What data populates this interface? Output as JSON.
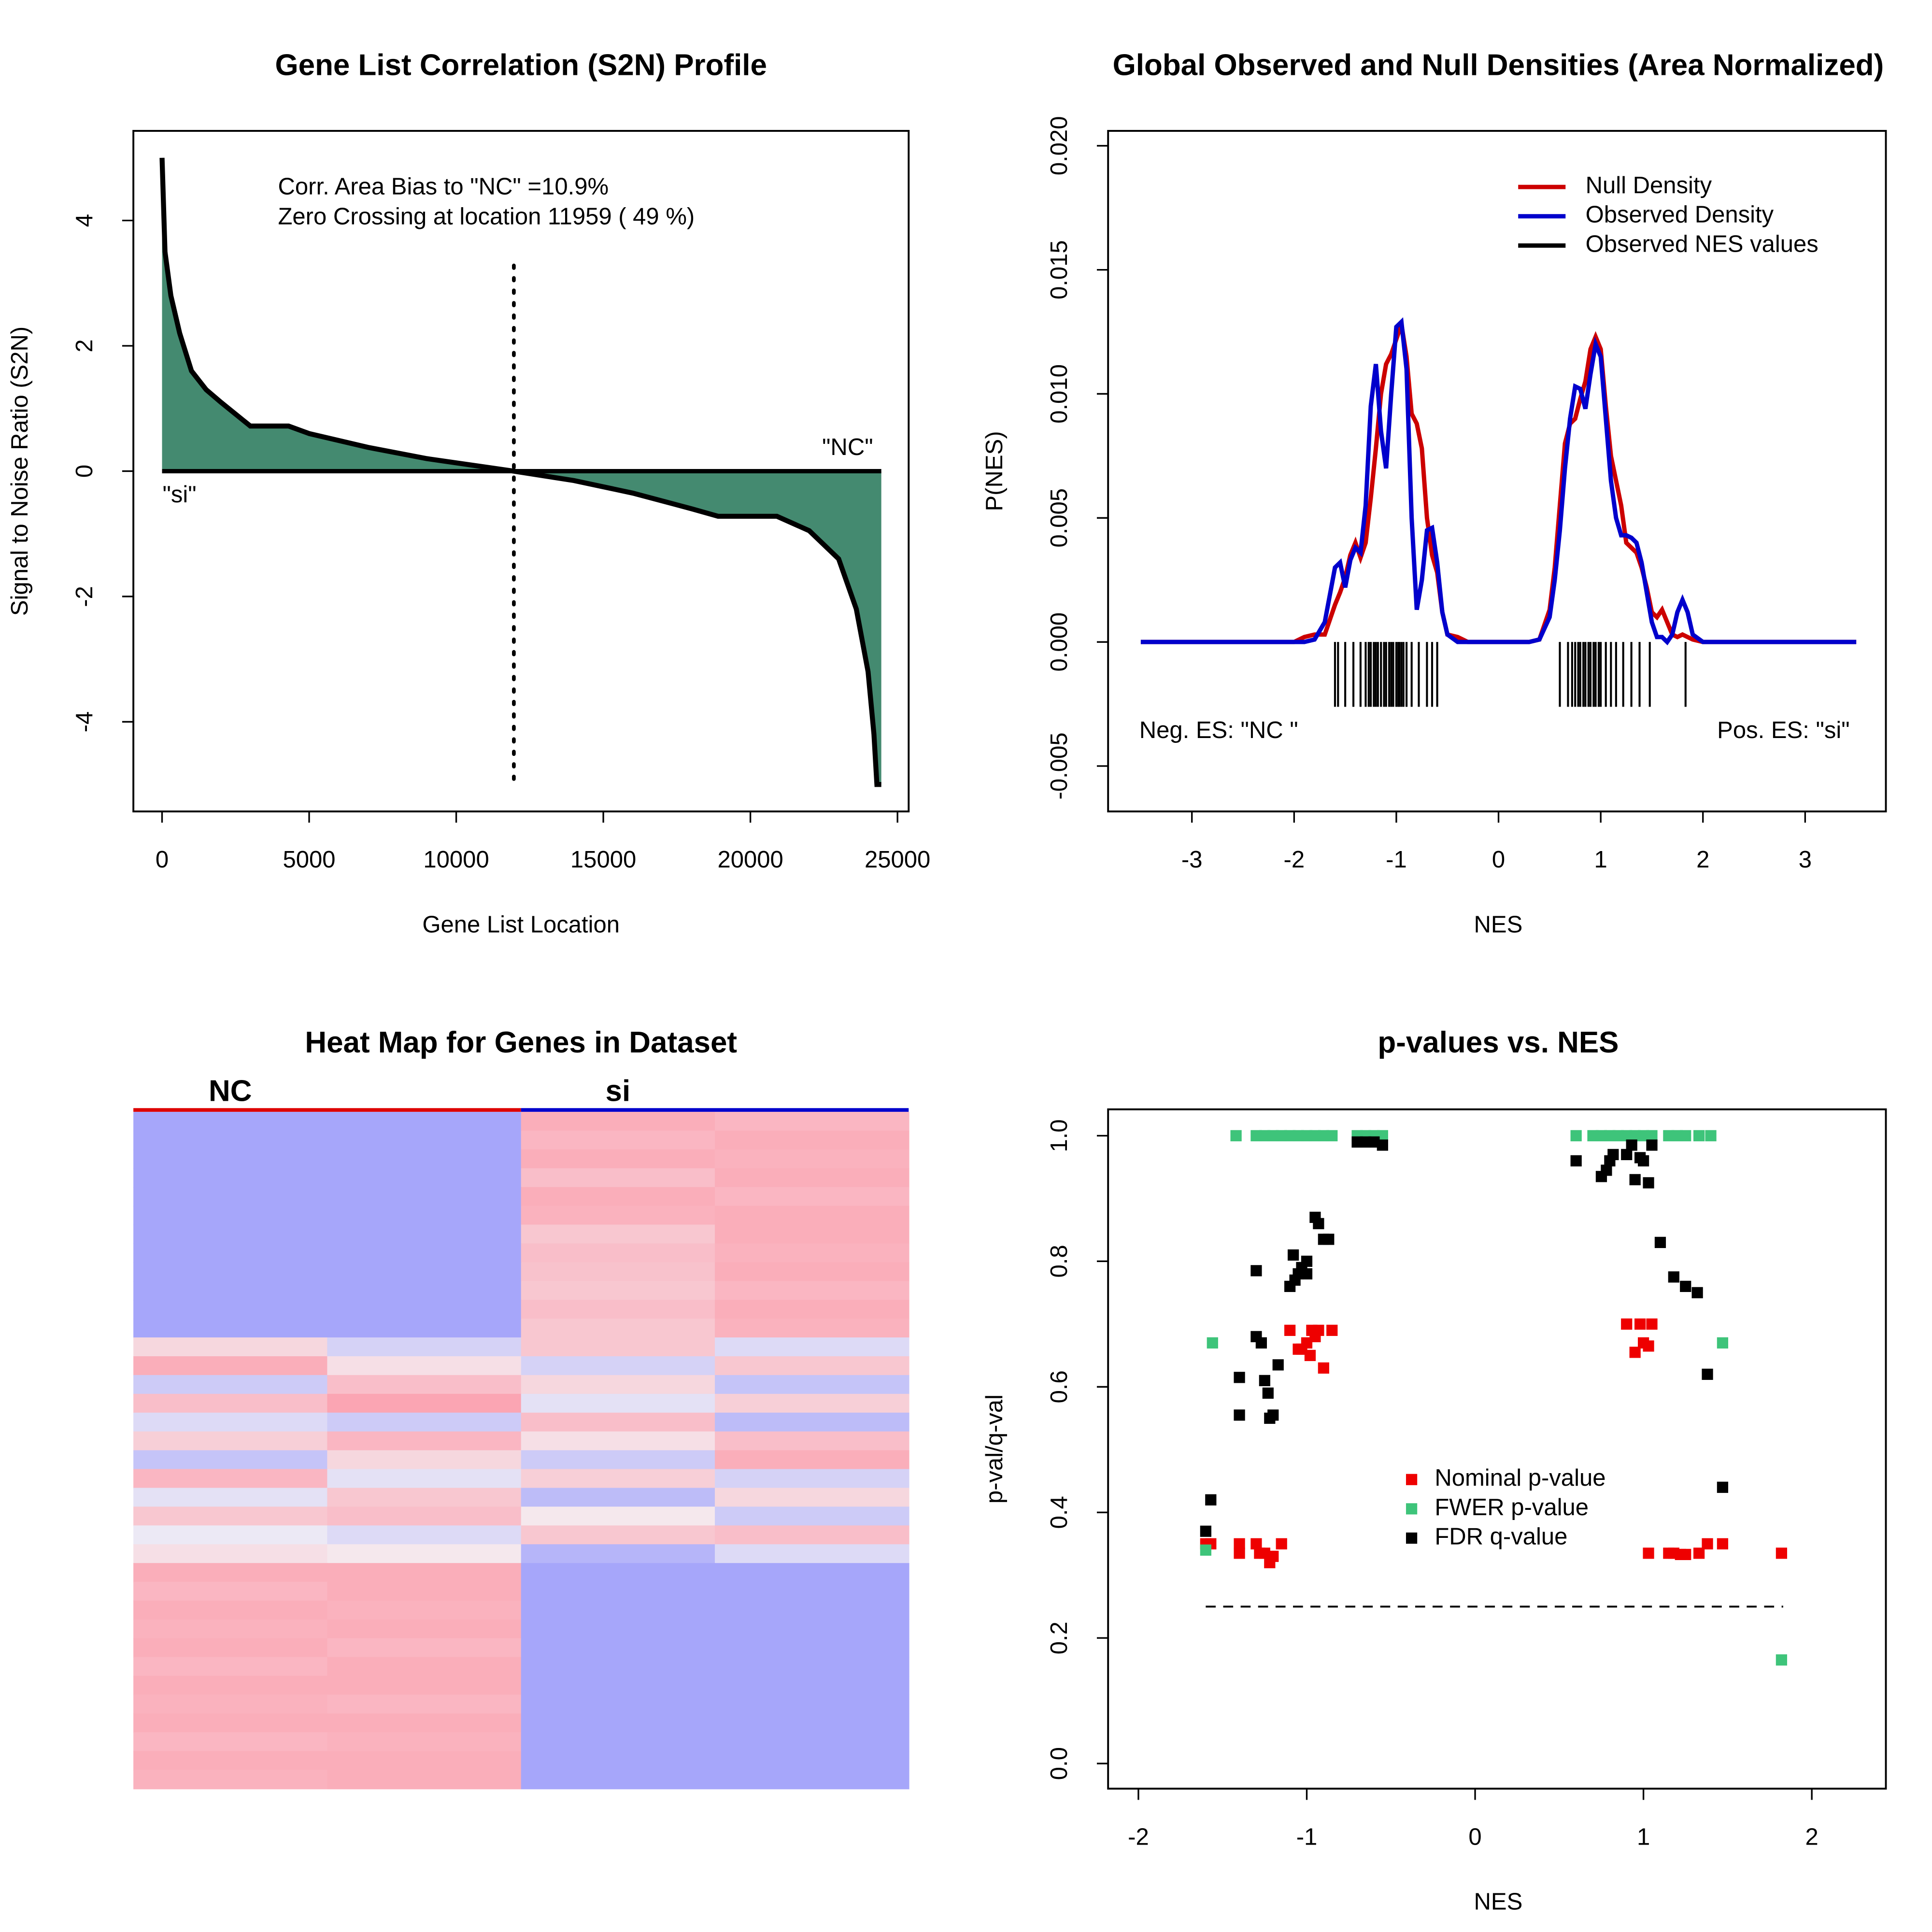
{
  "chart_data": [
    {
      "type": "area",
      "title": "Gene List Correlation (S2N) Profile",
      "xlabel": "Gene List Location",
      "ylabel": "Signal to Noise Ratio (S2N)",
      "x": [
        0,
        100,
        300,
        600,
        1000,
        1500,
        2000,
        3000,
        4300,
        5000,
        7000,
        9000,
        11959,
        14000,
        16000,
        18000,
        18900,
        20900,
        22000,
        23000,
        23600,
        24000,
        24200,
        24300,
        24450
      ],
      "values": [
        5.0,
        3.5,
        2.8,
        2.2,
        1.6,
        1.3,
        1.1,
        0.72,
        0.72,
        0.6,
        0.38,
        0.2,
        0,
        -0.15,
        -0.35,
        -0.6,
        -0.72,
        -0.72,
        -0.95,
        -1.4,
        -2.2,
        -3.2,
        -4.2,
        -5.0,
        -5.0
      ],
      "color": "#448a70",
      "zero_crossing": 11959,
      "annotations": [
        "Corr. Area Bias to \"NC\" =10.9%",
        "Zero Crossing at location  11959  ( 49  %)",
        "\"NC\"",
        "\"si\""
      ],
      "xlim": [
        -975,
        25380
      ],
      "ylim": [
        -5.43,
        5.43
      ],
      "xticks": [
        0,
        5000,
        10000,
        15000,
        20000,
        25000
      ],
      "yticks": [
        -4,
        -2,
        0,
        2,
        4
      ]
    },
    {
      "type": "line",
      "title": "Global Observed and Null Densities (Area Normalized)",
      "xlabel": "NES",
      "ylabel": "P(NES)",
      "x": [
        -3.5,
        -2.0,
        -1.9,
        -1.8,
        -1.7,
        -1.6,
        -1.55,
        -1.5,
        -1.45,
        -1.4,
        -1.35,
        -1.3,
        -1.25,
        -1.2,
        -1.15,
        -1.1,
        -1.05,
        -1.0,
        -0.95,
        -0.9,
        -0.85,
        -0.8,
        -0.75,
        -0.7,
        -0.65,
        -0.6,
        -0.55,
        -0.5,
        -0.4,
        -0.3,
        0.3,
        0.4,
        0.5,
        0.55,
        0.6,
        0.65,
        0.7,
        0.75,
        0.8,
        0.85,
        0.9,
        0.95,
        1.0,
        1.05,
        1.1,
        1.15,
        1.2,
        1.25,
        1.3,
        1.35,
        1.4,
        1.45,
        1.5,
        1.55,
        1.6,
        1.65,
        1.7,
        1.75,
        1.8,
        1.85,
        1.9,
        2.0,
        3.5
      ],
      "series": [
        {
          "name": "Null Density",
          "color": "#cc0000",
          "values": [
            0,
            0,
            0.0002,
            0.0003,
            0.0003,
            0.0015,
            0.002,
            0.0026,
            0.0035,
            0.004,
            0.0034,
            0.004,
            0.0058,
            0.0078,
            0.01,
            0.0112,
            0.0116,
            0.0122,
            0.0128,
            0.0115,
            0.0092,
            0.0088,
            0.0078,
            0.005,
            0.0035,
            0.0028,
            0.0012,
            0.0003,
            0.0002,
            0,
            0,
            0.0001,
            0.0013,
            0.003,
            0.0055,
            0.008,
            0.0088,
            0.009,
            0.0098,
            0.0105,
            0.0118,
            0.0123,
            0.0118,
            0.0095,
            0.0075,
            0.0065,
            0.0055,
            0.004,
            0.0038,
            0.0036,
            0.003,
            0.0022,
            0.0012,
            0.001,
            0.0013,
            0.0008,
            0.0003,
            0.0002,
            0.0003,
            0.0002,
            0.0001,
            0,
            0
          ]
        },
        {
          "name": "Observed Density",
          "color": "#0000cc",
          "values": [
            0,
            0,
            0,
            0.0001,
            0.0008,
            0.003,
            0.0032,
            0.0022,
            0.0033,
            0.0038,
            0.0036,
            0.0055,
            0.0095,
            0.0112,
            0.0085,
            0.007,
            0.01,
            0.0127,
            0.0129,
            0.011,
            0.005,
            0.0013,
            0.0025,
            0.0045,
            0.0046,
            0.0032,
            0.0012,
            0.0003,
            0,
            0,
            0,
            0.0001,
            0.001,
            0.0025,
            0.0045,
            0.007,
            0.009,
            0.0103,
            0.0102,
            0.0094,
            0.0108,
            0.012,
            0.0115,
            0.009,
            0.0065,
            0.005,
            0.0043,
            0.0043,
            0.0042,
            0.004,
            0.0032,
            0.002,
            0.0008,
            0.0002,
            0.0002,
            0,
            0.0003,
            0.0012,
            0.0017,
            0.0012,
            0.0003,
            0,
            0
          ]
        }
      ],
      "rug_name": "Observed NES values",
      "rug_color": "#000000",
      "rug": [
        -1.6,
        -1.57,
        -1.5,
        -1.42,
        -1.35,
        -1.3,
        -1.27,
        -1.25,
        -1.22,
        -1.2,
        -1.18,
        -1.15,
        -1.12,
        -1.1,
        -1.07,
        -1.05,
        -1.03,
        -1.0,
        -0.98,
        -0.97,
        -0.95,
        -0.93,
        -0.9,
        -0.85,
        -0.78,
        -0.7,
        -0.65,
        -0.6,
        0.6,
        0.68,
        0.72,
        0.75,
        0.78,
        0.8,
        0.83,
        0.85,
        0.88,
        0.9,
        0.93,
        0.95,
        0.98,
        1.0,
        1.05,
        1.1,
        1.15,
        1.22,
        1.3,
        1.38,
        1.48,
        1.83
      ],
      "annotations": [
        "Neg. ES: \"NC \"",
        "Pos. ES: \"si\""
      ],
      "xlim": [
        -3.82,
        3.79
      ],
      "ylim": [
        -0.00683,
        0.0206
      ],
      "xticks": [
        -3,
        -2,
        -1,
        0,
        1,
        2,
        3
      ],
      "yticks": [
        {
          "value": -0.005,
          "label": "-0.005"
        },
        {
          "value": 0,
          "label": "0.000"
        },
        {
          "value": 0.005,
          "label": "0.005"
        },
        {
          "value": 0.01,
          "label": "0.010"
        },
        {
          "value": 0.015,
          "label": "0.015"
        },
        {
          "value": 0.02,
          "label": "0.020"
        }
      ]
    },
    {
      "type": "heatmap",
      "title": "Heat Map for Genes in Dataset",
      "groups": [
        "NC",
        "si"
      ],
      "group_colors": [
        "#dd0000",
        "#0000cc"
      ],
      "colors": [
        "#a6a6fa",
        "#f4f0f4",
        "#fc9dac"
      ],
      "rows": [
        [
          -1,
          -1,
          0.8,
          0.7
        ],
        [
          -1,
          -1,
          0.7,
          0.8
        ],
        [
          -1,
          -1,
          0.8,
          0.75
        ],
        [
          -1,
          -1,
          0.6,
          0.8
        ],
        [
          -1,
          -1,
          0.8,
          0.7
        ],
        [
          -1,
          -1,
          0.75,
          0.8
        ],
        [
          -1,
          -1,
          0.5,
          0.8
        ],
        [
          -1,
          -1,
          0.6,
          0.75
        ],
        [
          -1,
          -1,
          0.55,
          0.8
        ],
        [
          -1,
          -1,
          0.5,
          0.7
        ],
        [
          -1,
          -1,
          0.6,
          0.8
        ],
        [
          -1,
          -1,
          0.5,
          0.75
        ],
        [
          0.3,
          -0.4,
          0.5,
          -0.3
        ],
        [
          0.8,
          0.2,
          -0.4,
          0.5
        ],
        [
          -0.5,
          0.6,
          0.3,
          -0.6
        ],
        [
          0.6,
          0.9,
          -0.2,
          0.4
        ],
        [
          -0.3,
          -0.5,
          0.6,
          -0.7
        ],
        [
          0.4,
          0.7,
          0.2,
          0.6
        ],
        [
          -0.6,
          0.3,
          -0.5,
          0.8
        ],
        [
          0.7,
          -0.2,
          0.4,
          -0.4
        ],
        [
          -0.2,
          0.5,
          -0.7,
          0.3
        ],
        [
          0.5,
          0.6,
          0.1,
          -0.5
        ],
        [
          -0.1,
          -0.3,
          0.5,
          0.6
        ],
        [
          0.2,
          0.1,
          -0.8,
          -0.3
        ],
        [
          0.8,
          0.8,
          -1,
          -1
        ],
        [
          0.7,
          0.8,
          -1,
          -1
        ],
        [
          0.8,
          0.75,
          -1,
          -1
        ],
        [
          0.75,
          0.8,
          -1,
          -1
        ],
        [
          0.8,
          0.7,
          -1,
          -1
        ],
        [
          0.7,
          0.8,
          -1,
          -1
        ],
        [
          0.8,
          0.8,
          -1,
          -1
        ],
        [
          0.75,
          0.7,
          -1,
          -1
        ],
        [
          0.8,
          0.8,
          -1,
          -1
        ],
        [
          0.7,
          0.75,
          -1,
          -1
        ],
        [
          0.8,
          0.8,
          -1,
          -1
        ],
        [
          0.75,
          0.8,
          -1,
          -1
        ]
      ]
    },
    {
      "type": "scatter",
      "title": "p-values vs. NES",
      "xlabel": "NES",
      "ylabel": "p-val/q-val",
      "threshold": 0.25,
      "series": [
        {
          "name": "Nominal p-value",
          "color": "#ee0000",
          "x": [
            -1.6,
            -1.57,
            -1.4,
            -1.4,
            -1.3,
            -1.28,
            -1.25,
            -1.22,
            -1.2,
            -1.15,
            -1.1,
            -1.05,
            -1.03,
            -1.0,
            -0.98,
            -0.97,
            -0.95,
            -0.93,
            -0.9,
            -0.85,
            0.9,
            0.95,
            0.98,
            1.0,
            1.03,
            1.05,
            1.03,
            1.15,
            1.18,
            1.22,
            1.25,
            1.33,
            1.38,
            1.47,
            1.82
          ],
          "values": [
            0.35,
            0.35,
            0.335,
            0.35,
            0.35,
            0.335,
            0.335,
            0.32,
            0.33,
            0.35,
            0.69,
            0.66,
            0.66,
            0.67,
            0.65,
            0.69,
            0.68,
            0.69,
            0.63,
            0.69,
            0.7,
            0.655,
            0.7,
            0.67,
            0.665,
            0.7,
            0.335,
            0.335,
            0.335,
            0.333,
            0.333,
            0.335,
            0.35,
            0.35,
            0.335
          ]
        },
        {
          "name": "FWER p-value",
          "color": "#3ec47a",
          "x": [
            -1.6,
            -1.56,
            -1.42,
            -1.3,
            -1.25,
            -1.2,
            -1.15,
            -1.1,
            -1.05,
            -1.0,
            -0.95,
            -0.9,
            -0.85,
            -0.7,
            -0.65,
            -0.6,
            -0.55,
            0.6,
            0.7,
            0.75,
            0.8,
            0.85,
            0.9,
            0.95,
            1.0,
            1.05,
            1.15,
            1.2,
            1.25,
            1.33,
            1.4,
            1.47,
            1.82
          ],
          "values": [
            0.34,
            0.67,
            1.0,
            1.0,
            1.0,
            1.0,
            1.0,
            1.0,
            1.0,
            1.0,
            1.0,
            1.0,
            1.0,
            1.0,
            1.0,
            1.0,
            1.0,
            1.0,
            1.0,
            1.0,
            1.0,
            1.0,
            1.0,
            1.0,
            1.0,
            1.0,
            1.0,
            1.0,
            1.0,
            1.0,
            1.0,
            0.67,
            0.165
          ]
        },
        {
          "name": "FDR q-value",
          "color": "#000000",
          "x": [
            -1.6,
            -1.57,
            -1.4,
            -1.4,
            -1.3,
            -1.3,
            -1.27,
            -1.25,
            -1.23,
            -1.22,
            -1.2,
            -1.17,
            -1.1,
            -1.08,
            -1.07,
            -1.05,
            -1.03,
            -1.0,
            -1.0,
            -0.95,
            -0.93,
            -0.9,
            -0.87,
            -0.7,
            -0.65,
            -0.6,
            -0.55,
            0.6,
            0.75,
            0.78,
            0.8,
            0.82,
            0.9,
            0.93,
            0.95,
            0.98,
            1.0,
            1.03,
            1.05,
            1.1,
            1.18,
            1.25,
            1.32,
            1.38,
            1.47
          ],
          "values": [
            0.37,
            0.42,
            0.615,
            0.555,
            0.785,
            0.68,
            0.67,
            0.61,
            0.59,
            0.55,
            0.555,
            0.635,
            0.76,
            0.81,
            0.77,
            0.78,
            0.79,
            0.78,
            0.8,
            0.87,
            0.86,
            0.835,
            0.835,
            0.99,
            0.99,
            0.99,
            0.985,
            0.96,
            0.935,
            0.945,
            0.96,
            0.97,
            0.97,
            0.985,
            0.93,
            0.965,
            0.96,
            0.925,
            0.985,
            0.83,
            0.775,
            0.76,
            0.75,
            0.62,
            0.44
          ]
        }
      ],
      "xlim": [
        -2.18,
        2.44
      ],
      "ylim": [
        -0.04,
        1.042
      ],
      "xticks": [
        -2,
        -1,
        0,
        1,
        2
      ],
      "yticks": [
        {
          "value": 0,
          "label": "0.0"
        },
        {
          "value": 0.2,
          "label": "0.2"
        },
        {
          "value": 0.4,
          "label": "0.4"
        },
        {
          "value": 0.6,
          "label": "0.6"
        },
        {
          "value": 0.8,
          "label": "0.8"
        },
        {
          "value": 1,
          "label": "1.0"
        }
      ]
    }
  ]
}
